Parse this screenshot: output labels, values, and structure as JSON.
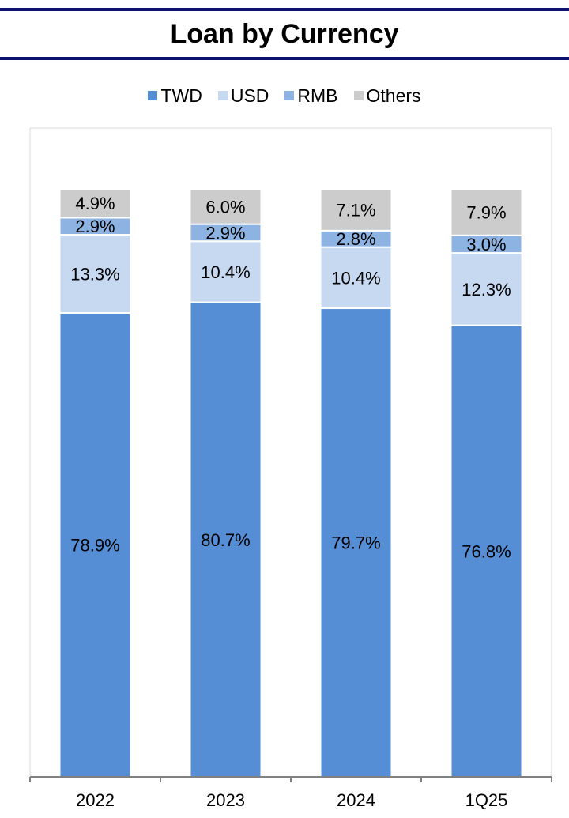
{
  "title": "Loan by Currency",
  "colors": {
    "title_rule": "#0d1270",
    "twd": "#558ed5",
    "usd": "#c6d9f1",
    "rmb": "#8db3e2",
    "others": "#cccccc",
    "axis": "#808080"
  },
  "legend": [
    {
      "label": "TWD",
      "color": "#558ed5"
    },
    {
      "label": "USD",
      "color": "#c6d9f1"
    },
    {
      "label": "RMB",
      "color": "#8db3e2"
    },
    {
      "label": "Others",
      "color": "#cccccc"
    }
  ],
  "chart_data": {
    "type": "bar",
    "stacked": true,
    "categories": [
      "2022",
      "2023",
      "2024",
      "1Q25"
    ],
    "series": [
      {
        "name": "TWD",
        "values": [
          78.9,
          80.7,
          79.7,
          76.8
        ],
        "labels": [
          "78.9%",
          "80.7%",
          "79.7%",
          "76.8%"
        ],
        "color": "#558ed5"
      },
      {
        "name": "USD",
        "values": [
          13.3,
          10.4,
          10.4,
          12.3
        ],
        "labels": [
          "13.3%",
          "10.4%",
          "10.4%",
          "12.3%"
        ],
        "color": "#c6d9f1"
      },
      {
        "name": "RMB",
        "values": [
          2.9,
          2.9,
          2.8,
          3.0
        ],
        "labels": [
          "2.9%",
          "2.9%",
          "2.8%",
          "3.0%"
        ],
        "color": "#8db3e2"
      },
      {
        "name": "Others",
        "values": [
          4.9,
          6.0,
          7.1,
          7.9
        ],
        "labels": [
          "4.9%",
          "6.0%",
          "7.1%",
          "7.9%"
        ],
        "color": "#cccccc"
      }
    ],
    "title": "Loan by Currency",
    "xlabel": "",
    "ylabel": "",
    "ylim": [
      0,
      100
    ],
    "legend_position": "top-center",
    "grid": false
  }
}
